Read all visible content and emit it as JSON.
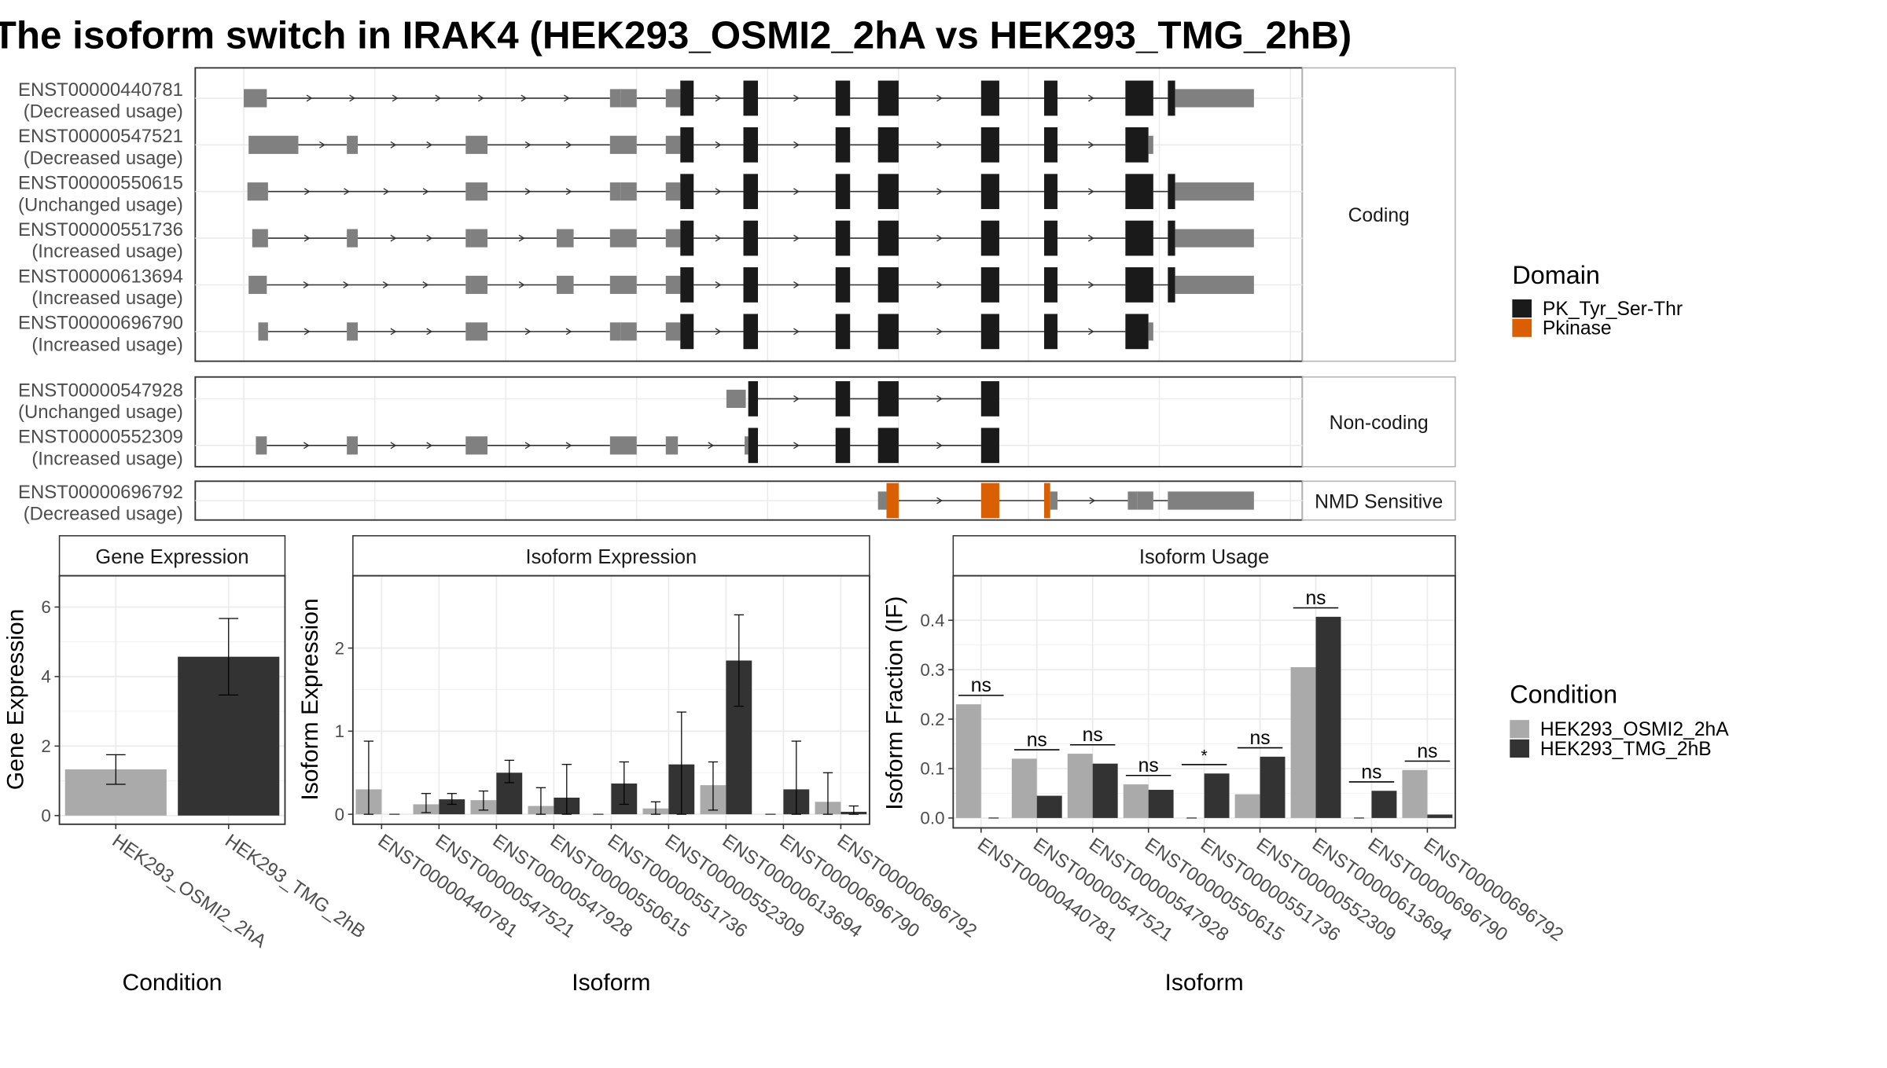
{
  "title": "The isoform switch in IRAK4 (HEK293_OSMI2_2hA vs HEK293_TMG_2hB)",
  "colors": {
    "utr": "#808080",
    "pk_tyr_ser_thr": "#1a1a1a",
    "pkinase": "#d95f02",
    "cond_a": "#aaaaaa",
    "cond_b": "#333333",
    "strip_bg": "#ffffff",
    "panel_border": "#333333"
  },
  "structure": {
    "groups": [
      {
        "label": "Coding",
        "transcripts": [
          {
            "id": "ENST00000440781",
            "usage": "(Decreased usage)",
            "exons": [
              [
                201,
                220,
                "utr"
              ],
              [
                503,
                512,
                "utr"
              ],
              [
                512,
                525,
                "utr"
              ],
              [
                549,
                561,
                "utr"
              ],
              [
                561,
                572,
                "pk"
              ],
              [
                613,
                625,
                "pk"
              ],
              [
                689,
                701,
                "pk"
              ],
              [
                724,
                741,
                "pk"
              ],
              [
                809,
                824,
                "pk"
              ],
              [
                861,
                872,
                "pk"
              ],
              [
                928,
                951,
                "pk"
              ],
              [
                963,
                969,
                "pk"
              ],
              [
                969,
                1034,
                "utr"
              ]
            ]
          },
          {
            "id": "ENST00000547521",
            "usage": "(Decreased usage)",
            "exons": [
              [
                205,
                246,
                "utr"
              ],
              [
                286,
                295,
                "utr"
              ],
              [
                384,
                402,
                "utr"
              ],
              [
                503,
                525,
                "utr"
              ],
              [
                549,
                561,
                "utr"
              ],
              [
                561,
                572,
                "pk"
              ],
              [
                613,
                625,
                "pk"
              ],
              [
                689,
                701,
                "pk"
              ],
              [
                724,
                741,
                "pk"
              ],
              [
                809,
                824,
                "pk"
              ],
              [
                861,
                872,
                "pk"
              ],
              [
                928,
                947,
                "pk"
              ],
              [
                947,
                951,
                "utr"
              ]
            ]
          },
          {
            "id": "ENST00000550615",
            "usage": "(Unchanged usage)",
            "exons": [
              [
                204,
                221,
                "utr"
              ],
              [
                384,
                402,
                "utr"
              ],
              [
                503,
                512,
                "utr"
              ],
              [
                512,
                525,
                "utr"
              ],
              [
                549,
                561,
                "utr"
              ],
              [
                561,
                572,
                "pk"
              ],
              [
                613,
                625,
                "pk"
              ],
              [
                689,
                701,
                "pk"
              ],
              [
                724,
                741,
                "pk"
              ],
              [
                809,
                824,
                "pk"
              ],
              [
                861,
                872,
                "pk"
              ],
              [
                928,
                951,
                "pk"
              ],
              [
                963,
                969,
                "pk"
              ],
              [
                969,
                1034,
                "utr"
              ]
            ]
          },
          {
            "id": "ENST00000551736",
            "usage": "(Increased usage)",
            "exons": [
              [
                208,
                221,
                "utr"
              ],
              [
                286,
                295,
                "utr"
              ],
              [
                384,
                388,
                "utr"
              ],
              [
                388,
                402,
                "utr"
              ],
              [
                459,
                473,
                "utr"
              ],
              [
                503,
                525,
                "utr"
              ],
              [
                549,
                561,
                "utr"
              ],
              [
                561,
                572,
                "pk"
              ],
              [
                613,
                625,
                "pk"
              ],
              [
                689,
                701,
                "pk"
              ],
              [
                724,
                741,
                "pk"
              ],
              [
                809,
                824,
                "pk"
              ],
              [
                861,
                872,
                "pk"
              ],
              [
                928,
                951,
                "pk"
              ],
              [
                963,
                969,
                "pk"
              ],
              [
                969,
                1034,
                "utr"
              ]
            ]
          },
          {
            "id": "ENST00000613694",
            "usage": "(Increased usage)",
            "exons": [
              [
                205,
                220,
                "utr"
              ],
              [
                384,
                388,
                "utr"
              ],
              [
                388,
                402,
                "utr"
              ],
              [
                459,
                473,
                "utr"
              ],
              [
                503,
                525,
                "utr"
              ],
              [
                549,
                561,
                "utr"
              ],
              [
                561,
                572,
                "pk"
              ],
              [
                613,
                625,
                "pk"
              ],
              [
                689,
                701,
                "pk"
              ],
              [
                724,
                741,
                "pk"
              ],
              [
                809,
                824,
                "pk"
              ],
              [
                861,
                872,
                "pk"
              ],
              [
                928,
                951,
                "pk"
              ],
              [
                963,
                969,
                "pk"
              ],
              [
                969,
                1034,
                "utr"
              ]
            ]
          },
          {
            "id": "ENST00000696790",
            "usage": "(Increased usage)",
            "exons": [
              [
                213,
                221,
                "utr"
              ],
              [
                286,
                295,
                "utr"
              ],
              [
                384,
                402,
                "utr"
              ],
              [
                503,
                512,
                "utr"
              ],
              [
                512,
                525,
                "utr"
              ],
              [
                549,
                561,
                "utr"
              ],
              [
                561,
                572,
                "pk"
              ],
              [
                613,
                625,
                "pk"
              ],
              [
                689,
                701,
                "pk"
              ],
              [
                724,
                741,
                "pk"
              ],
              [
                809,
                824,
                "pk"
              ],
              [
                861,
                872,
                "pk"
              ],
              [
                928,
                947,
                "pk"
              ],
              [
                947,
                951,
                "utr"
              ]
            ]
          }
        ]
      },
      {
        "label": "Non-coding",
        "transcripts": [
          {
            "id": "ENST00000547928",
            "usage": "(Unchanged usage)",
            "exons": [
              [
                599,
                615,
                "utr"
              ],
              [
                617,
                625,
                "pk"
              ],
              [
                689,
                701,
                "pk"
              ],
              [
                724,
                741,
                "pk"
              ],
              [
                809,
                824,
                "pk"
              ]
            ]
          },
          {
            "id": "ENST00000552309",
            "usage": "(Increased usage)",
            "exons": [
              [
                211,
                220,
                "utr"
              ],
              [
                286,
                295,
                "utr"
              ],
              [
                384,
                402,
                "utr"
              ],
              [
                503,
                525,
                "utr"
              ],
              [
                549,
                559,
                "utr"
              ],
              [
                614,
                617,
                "utr"
              ],
              [
                617,
                625,
                "pk"
              ],
              [
                689,
                701,
                "pk"
              ],
              [
                724,
                741,
                "pk"
              ],
              [
                809,
                824,
                "pk"
              ]
            ]
          }
        ]
      },
      {
        "label": "NMD Sensitive",
        "transcripts": [
          {
            "id": "ENST00000696792",
            "usage": "(Decreased usage)",
            "exons": [
              [
                724,
                731,
                "utr"
              ],
              [
                731,
                741,
                "pkinase"
              ],
              [
                809,
                824,
                "pkinase"
              ],
              [
                861,
                866,
                "pkinase"
              ],
              [
                866,
                872,
                "utr"
              ],
              [
                930,
                938,
                "utr"
              ],
              [
                938,
                951,
                "utr"
              ],
              [
                963,
                1034,
                "utr"
              ]
            ]
          }
        ]
      }
    ]
  },
  "legend_domain": {
    "title": "Domain",
    "items": [
      {
        "label": "PK_Tyr_Ser-Thr",
        "color": "#1a1a1a"
      },
      {
        "label": "Pkinase",
        "color": "#d95f02"
      }
    ]
  },
  "legend_condition": {
    "title": "Condition",
    "items": [
      {
        "label": "HEK293_OSMI2_2hA",
        "color": "#aaaaaa"
      },
      {
        "label": "HEK293_TMG_2hB",
        "color": "#333333"
      }
    ]
  },
  "chart_data": [
    {
      "type": "bar",
      "title": "Gene Expression",
      "xlabel": "Condition",
      "ylabel": "Gene Expression",
      "categories": [
        "HEK293_OSMI2_2hA",
        "HEK293_TMG_2hB"
      ],
      "values": [
        1.33,
        4.57
      ],
      "error_low": [
        0.9,
        3.47
      ],
      "error_high": [
        1.75,
        5.67
      ],
      "ylim": [
        -0.25,
        6.9
      ],
      "yticks": [
        0,
        2,
        4,
        6
      ]
    },
    {
      "type": "bar",
      "title": "Isoform Expression",
      "xlabel": "Isoform",
      "ylabel": "Isoform Expression",
      "categories": [
        "ENST00000440781",
        "ENST00000547521",
        "ENST00000547928",
        "ENST00000550615",
        "ENST00000551736",
        "ENST00000552309",
        "ENST00000613694",
        "ENST00000696790",
        "ENST00000696792"
      ],
      "series": [
        {
          "name": "HEK293_OSMI2_2hA",
          "values": [
            0.3,
            0.12,
            0.17,
            0.1,
            0.0,
            0.07,
            0.35,
            0.0,
            0.15
          ],
          "error_low": [
            0.0,
            0.02,
            0.05,
            0.0,
            0.0,
            0.0,
            0.05,
            0.0,
            0.0
          ],
          "error_high": [
            0.88,
            0.25,
            0.28,
            0.32,
            0.0,
            0.15,
            0.63,
            0.0,
            0.5
          ]
        },
        {
          "name": "HEK293_TMG_2hB",
          "values": [
            0.0,
            0.18,
            0.5,
            0.2,
            0.37,
            0.6,
            1.85,
            0.3,
            0.03
          ],
          "error_low": [
            0.0,
            0.12,
            0.38,
            0.0,
            0.12,
            0.0,
            1.3,
            0.0,
            0.0
          ],
          "error_high": [
            0.0,
            0.25,
            0.65,
            0.6,
            0.63,
            1.23,
            2.4,
            0.88,
            0.1
          ]
        }
      ],
      "ylim": [
        -0.12,
        2.87
      ],
      "yticks": [
        0,
        1,
        2
      ]
    },
    {
      "type": "bar",
      "title": "Isoform Usage",
      "xlabel": "Isoform",
      "ylabel": "Isoform Fraction (IF)",
      "categories": [
        "ENST00000440781",
        "ENST00000547521",
        "ENST00000547928",
        "ENST00000550615",
        "ENST00000551736",
        "ENST00000552309",
        "ENST00000613694",
        "ENST00000696790",
        "ENST00000696792"
      ],
      "series": [
        {
          "name": "HEK293_OSMI2_2hA",
          "values": [
            0.23,
            0.12,
            0.13,
            0.068,
            0.0,
            0.048,
            0.305,
            0.0,
            0.097
          ]
        },
        {
          "name": "HEK293_TMG_2hB",
          "values": [
            0.0,
            0.045,
            0.11,
            0.057,
            0.09,
            0.124,
            0.407,
            0.055,
            0.007
          ]
        }
      ],
      "significance": [
        "ns",
        "ns",
        "ns",
        "ns",
        "*",
        "ns",
        "ns",
        "ns",
        "ns"
      ],
      "sig_y": [
        0.248,
        0.138,
        0.148,
        0.086,
        0.108,
        0.142,
        0.425,
        0.073,
        0.115
      ],
      "ylim": [
        -0.02,
        0.49
      ],
      "yticks": [
        0.0,
        0.1,
        0.2,
        0.3,
        0.4
      ],
      "ytick_labels": [
        "0.0",
        "0.1",
        "0.2",
        "0.3",
        "0.4"
      ]
    }
  ]
}
